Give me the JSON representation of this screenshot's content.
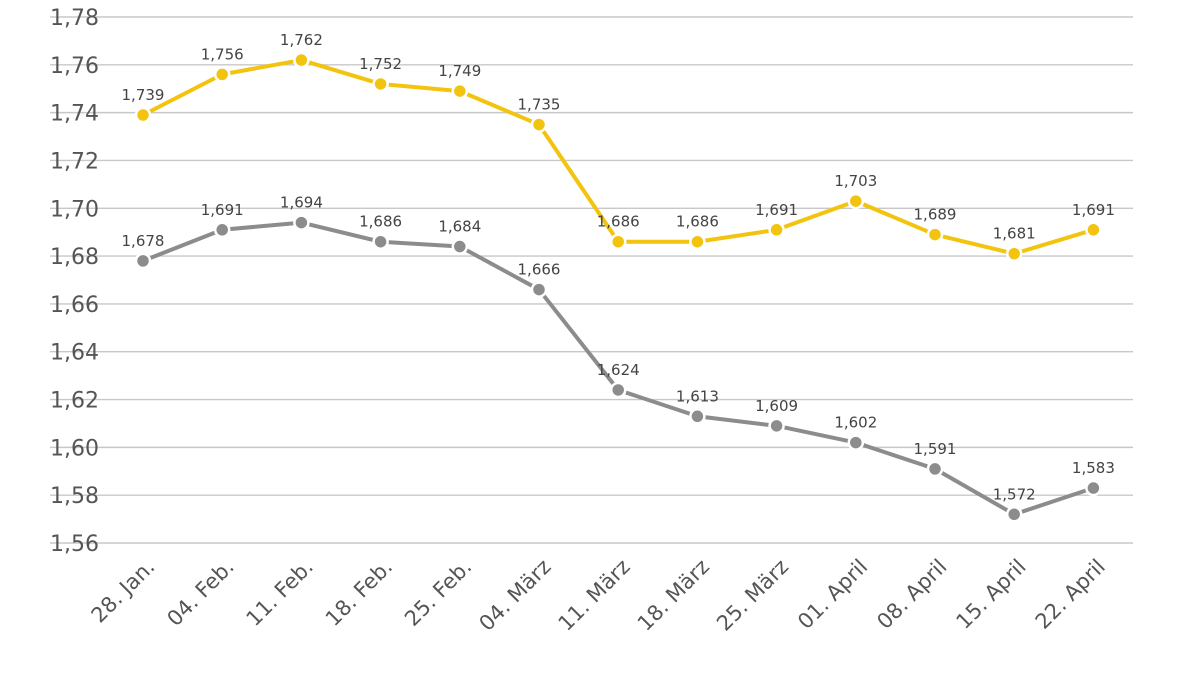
{
  "chart_data": {
    "type": "line",
    "categories": [
      "28. Jan.",
      "04. Feb.",
      "11. Feb.",
      "18. Feb.",
      "25. Feb.",
      "04. März",
      "11. März",
      "18. März",
      "25. März",
      "01. April",
      "08. April",
      "15. April",
      "22. April"
    ],
    "y_ticks": [
      "1,56",
      "1,58",
      "1,60",
      "1,62",
      "1,64",
      "1,66",
      "1,68",
      "1,70",
      "1,72",
      "1,74",
      "1,76",
      "1,78"
    ],
    "ylim": [
      1.55,
      1.78
    ],
    "grid": true,
    "series": [
      {
        "name": "yellow",
        "color": "#f2c40f",
        "values": [
          1.739,
          1.756,
          1.762,
          1.752,
          1.749,
          1.735,
          1.686,
          1.686,
          1.691,
          1.703,
          1.689,
          1.681,
          1.691
        ],
        "labels": [
          "1,739",
          "1,756",
          "1,762",
          "1,752",
          "1,749",
          "1,735",
          "1,686",
          "1,686",
          "1,691",
          "1,703",
          "1,689",
          "1,681",
          "1,691"
        ]
      },
      {
        "name": "gray",
        "color": "#8c8c8c",
        "values": [
          1.678,
          1.691,
          1.694,
          1.686,
          1.684,
          1.666,
          1.624,
          1.613,
          1.609,
          1.602,
          1.591,
          1.572,
          1.583
        ],
        "labels": [
          "1,678",
          "1,691",
          "1,694",
          "1,686",
          "1,684",
          "1,666",
          "1,624",
          "1,613",
          "1,609",
          "1,602",
          "1,591",
          "1,572",
          "1,583"
        ]
      }
    ]
  }
}
